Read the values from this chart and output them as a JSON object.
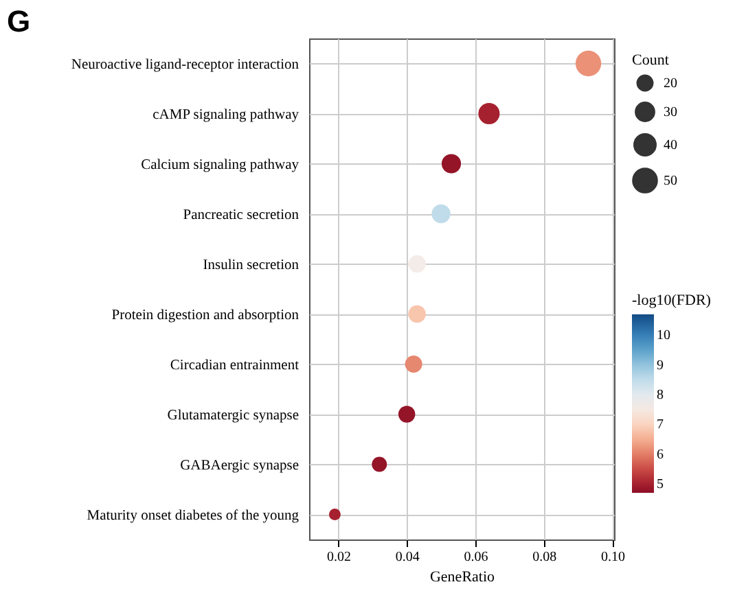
{
  "chart_data": {
    "type": "bubble",
    "title": "G",
    "xlabel": "GeneRatio",
    "categories": [
      "Neuroactive ligand-receptor interaction",
      "cAMP signaling pathway",
      "Calcium signaling pathway",
      "Pancreatic secretion",
      "Insulin secretion",
      "Protein digestion and absorption",
      "Circadian entrainment",
      "Glutamatergic synapse",
      "GABAergic synapse",
      "Maturity onset diabetes of the young"
    ],
    "orientation": "horizontal",
    "values": [
      0.093,
      0.064,
      0.053,
      0.05,
      0.043,
      0.043,
      0.042,
      0.04,
      0.032,
      0.019
    ],
    "sizes": [
      58,
      40,
      33,
      31,
      27,
      27,
      26,
      25,
      20,
      12
    ],
    "size_legend": [
      20,
      30,
      40,
      50
    ],
    "legend_title": "Count",
    "cvalues": [
      6.2,
      5.0,
      4.8,
      8.5,
      7.6,
      6.8,
      6.1,
      4.8,
      4.8,
      5.0
    ],
    "clabel": "-log10(FDR)",
    "clim": [
      4.7,
      10.7
    ],
    "cticks": [
      5,
      6,
      7,
      8,
      9,
      10
    ],
    "xlim": [
      0.0115,
      0.1005
    ],
    "xticks": [
      0.02,
      0.04,
      0.06,
      0.08,
      {
        "value": 0.1,
        "label": "0.10"
      }
    ],
    "grid": true
  }
}
